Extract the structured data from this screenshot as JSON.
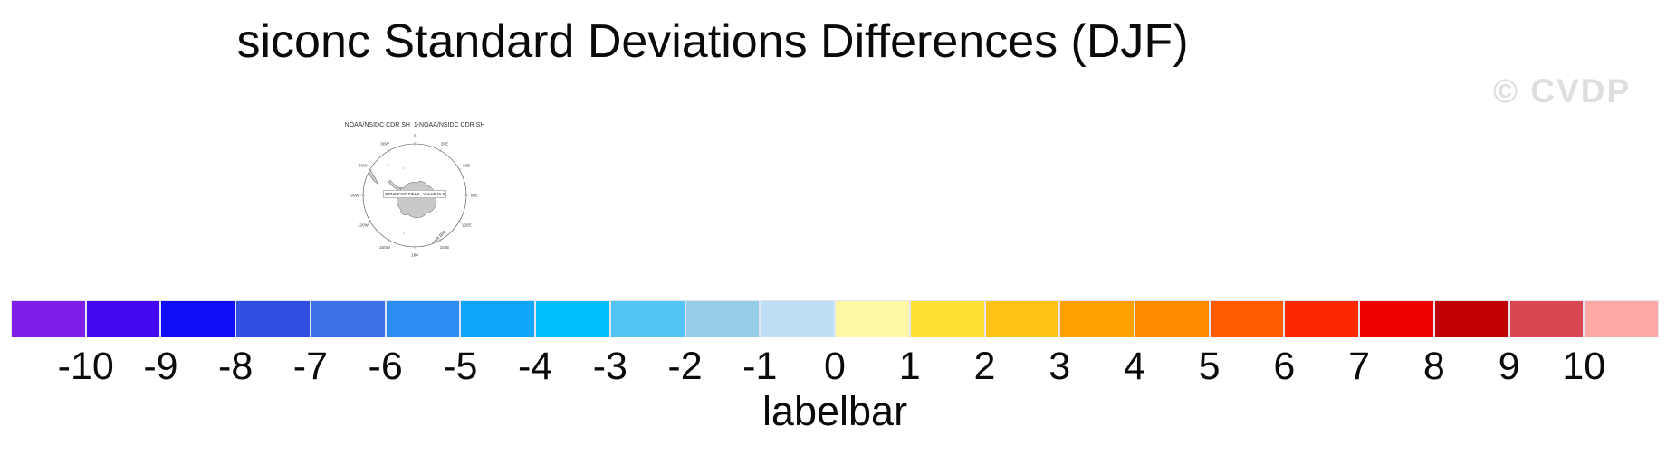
{
  "page": {
    "title": "siconc Standard Deviations Differences (DJF)",
    "watermark": "© CVDP"
  },
  "map": {
    "title": "NOAA/NSIDC CDR SH_1-NOAA/NSIDC CDR SH",
    "annotation": "CONSTANT FIELD - VALUE IS 0",
    "lon_labels": [
      "0",
      "30E",
      "60E",
      "90E",
      "120E",
      "150E",
      "180",
      "150W",
      "120W",
      "90W",
      "60W",
      "30W"
    ]
  },
  "labelbar": {
    "caption": "labelbar",
    "levels": [
      -10,
      -9,
      -8,
      -7,
      -6,
      -5,
      -4,
      -3,
      -2,
      -1,
      0,
      1,
      2,
      3,
      4,
      5,
      6,
      7,
      8,
      9,
      10
    ],
    "colors": [
      "#7f1ee8",
      "#4408f0",
      "#0d0ef5",
      "#2e4fe0",
      "#3d71e6",
      "#2b8cf2",
      "#0fa6fa",
      "#01bffb",
      "#52c5f2",
      "#96cde9",
      "#bee0f5",
      "#fff9a5",
      "#ffe033",
      "#ffc317",
      "#ffa000",
      "#ff8c00",
      "#ff5c00",
      "#fc2800",
      "#ec0000",
      "#c00000",
      "#d84850",
      "#ffa8a8"
    ]
  },
  "chart_data": {
    "type": "labelbar",
    "title": "siconc Standard Deviations Differences (DJF)",
    "variable": "siconc",
    "season": "DJF",
    "map_panel": {
      "title": "NOAA/NSIDC CDR SH_1-NOAA/NSIDC CDR SH",
      "annotation": "CONSTANT FIELD - VALUE IS 0",
      "lon_labels": [
        "0",
        "30E",
        "60E",
        "90E",
        "120E",
        "150E",
        "180",
        "150W",
        "120W",
        "90W",
        "60W",
        "30W"
      ]
    },
    "levels": [
      -10,
      -9,
      -8,
      -7,
      -6,
      -5,
      -4,
      -3,
      -2,
      -1,
      0,
      1,
      2,
      3,
      4,
      5,
      6,
      7,
      8,
      9,
      10
    ],
    "colors": [
      "#7f1ee8",
      "#4408f0",
      "#0d0ef5",
      "#2e4fe0",
      "#3d71e6",
      "#2b8cf2",
      "#0fa6fa",
      "#01bffb",
      "#52c5f2",
      "#96cde9",
      "#bee0f5",
      "#fff9a5",
      "#ffe033",
      "#ffc317",
      "#ffa000",
      "#ff8c00",
      "#ff5c00",
      "#fc2800",
      "#ec0000",
      "#c00000",
      "#d84850",
      "#ffa8a8"
    ],
    "caption": "labelbar",
    "legend_position": "bottom",
    "grid": false
  }
}
